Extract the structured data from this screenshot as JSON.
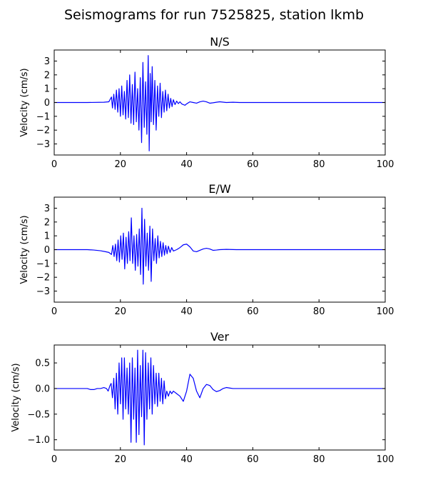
{
  "figure": {
    "title": "Seismograms for run 7525825, station lkmb"
  },
  "chart_data": [
    {
      "type": "line",
      "title": "N/S",
      "xlabel": "",
      "ylabel": "Velocity (cm/s)",
      "xlim": [
        0,
        100
      ],
      "ylim": [
        -3.8,
        3.8
      ],
      "xticks": [
        0,
        20,
        40,
        60,
        80,
        100
      ],
      "xtick_labels": [
        "0",
        "20",
        "40",
        "60",
        "80",
        "100"
      ],
      "yticks": [
        -3,
        -2,
        -1,
        0,
        1,
        2,
        3
      ],
      "ytick_labels": [
        "−3",
        "−2",
        "−1",
        "0",
        "1",
        "2",
        "3"
      ],
      "grid": false,
      "series": [
        {
          "color": "#0000ff",
          "x": [
            0,
            10,
            15,
            16.5,
            17.3,
            17.6,
            18,
            18.4,
            18.8,
            19.2,
            19.6,
            20,
            20.4,
            20.8,
            21.2,
            21.6,
            22,
            22.4,
            22.8,
            23.2,
            23.6,
            24,
            24.4,
            24.8,
            25.2,
            25.6,
            26,
            26.4,
            26.8,
            27.2,
            27.6,
            28,
            28.4,
            28.7,
            29,
            29.3,
            29.6,
            30,
            30.4,
            30.8,
            31.2,
            31.6,
            32,
            32.4,
            32.8,
            33.2,
            33.6,
            34,
            34.4,
            34.8,
            35.2,
            35.6,
            36,
            36.5,
            37,
            37.5,
            38,
            38.5,
            39,
            39.5,
            40,
            41,
            42,
            43,
            44,
            45,
            46,
            47,
            48,
            49,
            50,
            52,
            54,
            56,
            60,
            70,
            80,
            90,
            100
          ],
          "y": [
            0,
            0,
            0.02,
            0.05,
            0.4,
            -0.4,
            0.6,
            -0.5,
            0.9,
            -0.7,
            1.0,
            -1.0,
            1.2,
            -0.9,
            0.8,
            -1.2,
            1.6,
            -1.1,
            2.0,
            -1.5,
            1.3,
            -1.6,
            2.2,
            -1.4,
            1.0,
            -2.0,
            1.8,
            -2.9,
            2.9,
            -1.8,
            1.5,
            -2.3,
            3.4,
            -3.5,
            2.1,
            -1.4,
            2.6,
            -1.6,
            1.6,
            -2.0,
            1.2,
            -1.0,
            1.4,
            -1.1,
            0.8,
            -0.7,
            0.9,
            -0.6,
            0.6,
            -0.4,
            0.3,
            -0.3,
            0.2,
            -0.15,
            0.1,
            -0.08,
            0.05,
            -0.1,
            -0.15,
            -0.2,
            -0.1,
            0.05,
            0.0,
            -0.05,
            0.05,
            0.1,
            0.05,
            -0.05,
            -0.02,
            0.02,
            0.05,
            0.0,
            0.02,
            0.0,
            0.0,
            0.0,
            0.0,
            0.0,
            0.0
          ]
        }
      ]
    },
    {
      "type": "line",
      "title": "E/W",
      "xlabel": "",
      "ylabel": "Velocity (cm/s)",
      "xlim": [
        0,
        100
      ],
      "ylim": [
        -3.8,
        3.8
      ],
      "xticks": [
        0,
        20,
        40,
        60,
        80,
        100
      ],
      "xtick_labels": [
        "0",
        "20",
        "40",
        "60",
        "80",
        "100"
      ],
      "yticks": [
        -3,
        -2,
        -1,
        0,
        1,
        2,
        3
      ],
      "ytick_labels": [
        "−3",
        "−2",
        "−1",
        "0",
        "1",
        "2",
        "3"
      ],
      "grid": false,
      "series": [
        {
          "color": "#0000ff",
          "x": [
            0,
            10,
            12,
            14,
            15.5,
            16.5,
            17.3,
            17.7,
            18.1,
            18.5,
            18.9,
            19.3,
            19.7,
            20.1,
            20.5,
            20.9,
            21.3,
            21.7,
            22.1,
            22.5,
            22.9,
            23.3,
            23.7,
            24.1,
            24.5,
            24.9,
            25.3,
            25.7,
            26.1,
            26.5,
            26.9,
            27.3,
            27.7,
            28.1,
            28.5,
            28.9,
            29.3,
            29.7,
            30.1,
            30.5,
            30.9,
            31.3,
            31.7,
            32.1,
            32.5,
            32.9,
            33.3,
            33.7,
            34.1,
            34.5,
            35,
            35.5,
            36,
            37,
            38,
            39,
            40,
            41,
            42,
            43,
            44,
            45,
            46,
            47,
            48,
            49,
            50,
            52,
            55,
            60,
            70,
            80,
            90,
            100
          ],
          "y": [
            0,
            0,
            -0.03,
            -0.08,
            -0.15,
            -0.2,
            -0.35,
            0.3,
            -0.5,
            0.4,
            -0.8,
            0.7,
            -0.9,
            1.0,
            -0.7,
            1.2,
            -1.4,
            0.9,
            -1.0,
            1.3,
            -0.8,
            2.3,
            -1.0,
            1.0,
            -1.5,
            1.1,
            -1.2,
            1.5,
            -1.8,
            3.0,
            -2.5,
            2.2,
            -1.2,
            1.2,
            -1.5,
            1.7,
            -2.3,
            1.5,
            -0.8,
            0.8,
            -1.0,
            1.0,
            -0.6,
            0.6,
            -0.5,
            0.5,
            -0.4,
            0.3,
            -0.3,
            0.25,
            -0.2,
            0.15,
            -0.1,
            0.0,
            0.15,
            0.35,
            0.4,
            0.2,
            -0.1,
            -0.15,
            -0.05,
            0.05,
            0.1,
            0.05,
            -0.05,
            -0.03,
            0.0,
            0.02,
            0.0,
            0.0,
            0.0,
            0.0,
            0.0,
            0.0
          ]
        }
      ]
    },
    {
      "type": "line",
      "title": "Ver",
      "xlabel": "",
      "ylabel": "Velocity (cm/s)",
      "xlim": [
        0,
        100
      ],
      "ylim": [
        -1.2,
        0.85
      ],
      "xticks": [
        0,
        20,
        40,
        60,
        80,
        100
      ],
      "xtick_labels": [
        "0",
        "20",
        "40",
        "60",
        "80",
        "100"
      ],
      "yticks": [
        -1.0,
        -0.5,
        0.0,
        0.5
      ],
      "ytick_labels": [
        "−1.0",
        "−0.5",
        "0.0",
        "0.5"
      ],
      "grid": false,
      "series": [
        {
          "color": "#0000ff",
          "x": [
            0,
            10,
            11,
            12,
            13,
            14,
            15,
            15.8,
            16.3,
            16.8,
            17.2,
            17.6,
            18,
            18.4,
            18.8,
            19.2,
            19.6,
            20,
            20.4,
            20.8,
            21.2,
            21.6,
            22,
            22.4,
            22.8,
            23.2,
            23.6,
            24,
            24.4,
            24.8,
            25.2,
            25.6,
            26,
            26.4,
            26.8,
            27.2,
            27.6,
            28,
            28.4,
            28.8,
            29.2,
            29.6,
            30,
            30.4,
            30.8,
            31.2,
            31.6,
            32,
            32.4,
            32.8,
            33.2,
            33.6,
            34,
            34.5,
            35,
            35.5,
            36,
            37,
            38,
            39,
            40,
            41,
            42,
            43,
            44,
            45,
            46,
            47,
            48,
            49,
            50,
            51,
            52,
            53,
            54,
            55,
            56,
            58,
            60,
            70,
            80,
            90,
            100
          ],
          "y": [
            0,
            0,
            -0.02,
            -0.02,
            0.0,
            0.0,
            0.02,
            0.0,
            -0.05,
            0.05,
            0.1,
            -0.18,
            0.2,
            -0.4,
            0.3,
            -0.5,
            0.5,
            -0.3,
            0.6,
            -0.6,
            0.6,
            -0.4,
            0.4,
            -0.5,
            0.5,
            -1.05,
            0.6,
            -0.6,
            0.4,
            -1.05,
            0.75,
            -0.9,
            0.45,
            -0.55,
            0.75,
            -1.1,
            0.7,
            -0.6,
            0.5,
            -0.4,
            0.6,
            -0.5,
            0.45,
            -0.3,
            0.3,
            -0.35,
            0.3,
            -0.25,
            0.2,
            -0.3,
            0.15,
            -0.2,
            -0.05,
            -0.15,
            -0.05,
            -0.1,
            -0.05,
            -0.1,
            -0.15,
            -0.25,
            -0.05,
            0.28,
            0.2,
            -0.05,
            -0.18,
            0.0,
            0.08,
            0.06,
            -0.02,
            -0.06,
            -0.04,
            0.0,
            0.02,
            0.01,
            0.0,
            0.0,
            0.0,
            0.0,
            0.0,
            0.0,
            0.0,
            0.0,
            0.0
          ]
        }
      ]
    }
  ]
}
